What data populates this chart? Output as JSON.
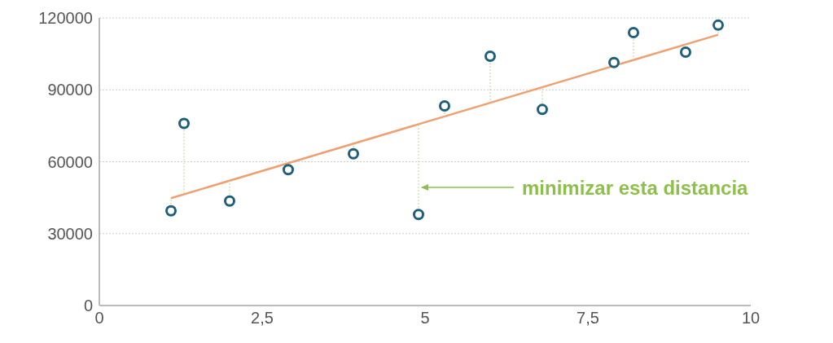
{
  "chart_data": {
    "type": "scatter",
    "xlim": [
      0,
      10
    ],
    "xticks": [
      0,
      {
        "value": 2.5,
        "label": "2,5"
      },
      5,
      {
        "value": 7.5,
        "label": "7,5"
      },
      10
    ],
    "ylim": [
      0,
      120000
    ],
    "yticks": [
      0,
      30000,
      60000,
      90000,
      120000
    ],
    "grid": "y",
    "series": [
      {
        "marker": "circle",
        "color": "#1f5f7a",
        "x": [
          1.1,
          1.3,
          2.0,
          2.9,
          3.9,
          4.9,
          5.3,
          6.0,
          6.8,
          7.9,
          8.2,
          9.0,
          9.5
        ],
        "values": [
          39500,
          76000,
          43600,
          56700,
          63300,
          38000,
          83300,
          104000,
          81800,
          101400,
          113900,
          105700,
          117000
        ]
      },
      {
        "type": "line",
        "color": "#f0a070",
        "x": [
          1.1,
          9.5
        ],
        "values": [
          44800,
          113000
        ]
      }
    ],
    "annotations": [
      "minimizar esta distancia"
    ]
  }
}
